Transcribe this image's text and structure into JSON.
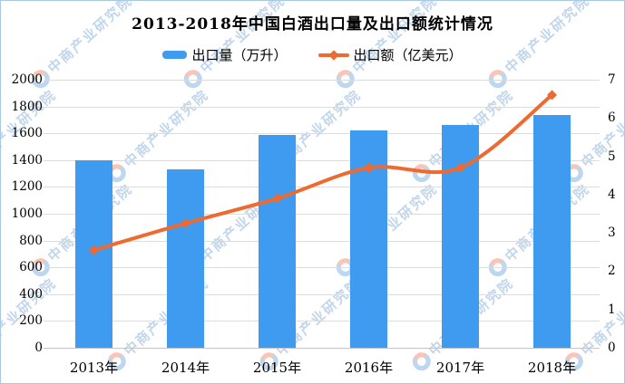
{
  "title": "2013-2018年中国白酒出口量及出口额统计情况",
  "watermark": {
    "text": "中商产业研究院"
  },
  "legend": [
    {
      "label": "出口量（万升）",
      "type": "bar",
      "color": "#3E9BF0"
    },
    {
      "label": "出口额（亿美元）",
      "type": "line",
      "color": "#ED6A31"
    }
  ],
  "chart_data": {
    "type": "bar",
    "subtype": "bar+line dual-axis combo",
    "title": "2013-2018年中国白酒出口量及出口额统计情况",
    "categories": [
      "2013年",
      "2014年",
      "2015年",
      "2016年",
      "2017年",
      "2018年"
    ],
    "series": [
      {
        "name": "出口量（万升）",
        "type": "bar",
        "axis": "left",
        "color": "#3E9BF0",
        "values": [
          1400,
          1330,
          1585,
          1620,
          1660,
          1735
        ]
      },
      {
        "name": "出口额（亿美元）",
        "type": "line",
        "axis": "right",
        "color": "#ED6A31",
        "values": [
          2.55,
          3.25,
          3.9,
          4.7,
          4.7,
          6.6
        ]
      }
    ],
    "left_axis": {
      "min": 0,
      "max": 2000,
      "step": 200,
      "ticks": [
        "0",
        "200",
        "400",
        "600",
        "800",
        "1000",
        "1200",
        "1400",
        "1600",
        "1800",
        "2000"
      ]
    },
    "right_axis": {
      "min": 0,
      "max": 7,
      "step": 1,
      "ticks": [
        "0",
        "1",
        "2",
        "3",
        "4",
        "5",
        "6",
        "7"
      ]
    },
    "grid": true,
    "legend_position": "top"
  },
  "colors": {
    "bar": "#3E9BF0",
    "line": "#ED6A31",
    "gridline": "#dcdcdc",
    "border": "#a9c8e2",
    "watermark": "#aecfeb"
  }
}
